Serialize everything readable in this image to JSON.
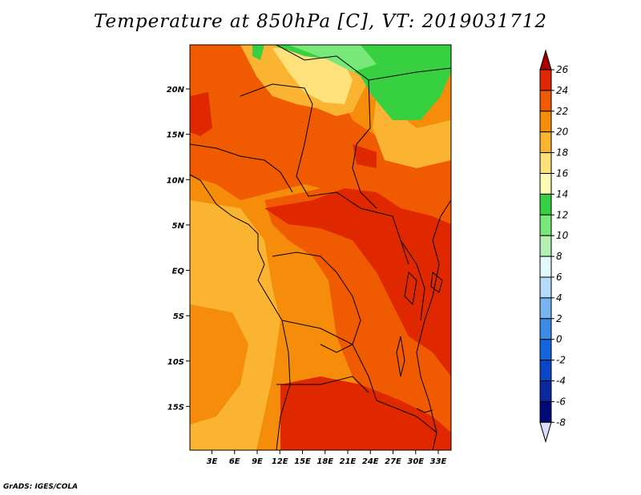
{
  "title": "Temperature at 850hPa [C], VT: 2019031712",
  "credit": "GrADS: IGES/COLA",
  "map": {
    "lat_labels": [
      {
        "label": "20N",
        "lat": 20
      },
      {
        "label": "15N",
        "lat": 15
      },
      {
        "label": "10N",
        "lat": 10
      },
      {
        "label": "5N",
        "lat": 5
      },
      {
        "label": "EQ",
        "lat": 0
      },
      {
        "label": "5S",
        "lat": -5
      },
      {
        "label": "10S",
        "lat": -10
      },
      {
        "label": "15S",
        "lat": -15
      }
    ],
    "lon_labels": [
      {
        "label": "3E",
        "lon": 3
      },
      {
        "label": "6E",
        "lon": 6
      },
      {
        "label": "9E",
        "lon": 9
      },
      {
        "label": "12E",
        "lon": 12
      },
      {
        "label": "15E",
        "lon": 15
      },
      {
        "label": "18E",
        "lon": 18
      },
      {
        "label": "21E",
        "lon": 21
      },
      {
        "label": "24E",
        "lon": 24
      },
      {
        "label": "27E",
        "lon": 27
      },
      {
        "label": "30E",
        "lon": 30
      },
      {
        "label": "33E",
        "lon": 33
      }
    ]
  },
  "colorbar": {
    "levels": [
      "26",
      "24",
      "22",
      "20",
      "18",
      "16",
      "14",
      "12",
      "10",
      "8",
      "6",
      "4",
      "2",
      "0",
      "-2",
      "-4",
      "-6",
      "-8"
    ],
    "colors": [
      "#a50000",
      "#e02800",
      "#f05a00",
      "#f58c0a",
      "#fab432",
      "#fde17a",
      "#fffab4",
      "#37d040",
      "#78e878",
      "#b4f0b4",
      "#e1faff",
      "#b4dcfa",
      "#78b4f0",
      "#3c8ce6",
      "#1464dc",
      "#0a46c8",
      "#0a28a0",
      "#000a78",
      "#dcdcff"
    ]
  }
}
